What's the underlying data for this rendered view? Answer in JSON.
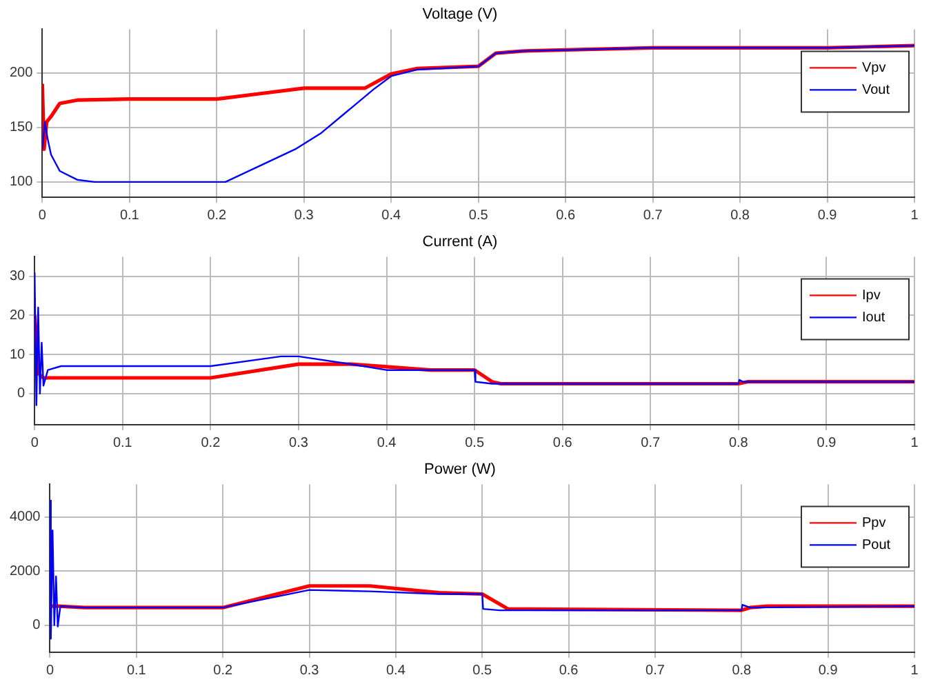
{
  "chart_data": [
    {
      "type": "line",
      "title": "Voltage (V)",
      "xlim": [
        0,
        1
      ],
      "xticks": [
        0,
        0.1,
        0.2,
        0.3,
        0.4,
        0.5,
        0.6,
        0.7,
        0.8,
        0.9,
        1
      ],
      "ylim": [
        86,
        240
      ],
      "yticks": [
        100,
        150,
        200
      ],
      "grid": true,
      "legend": "top right",
      "series": [
        {
          "name": "Vpv",
          "color": "#ff0000",
          "x": [
            0,
            0.002,
            0.005,
            0.01,
            0.02,
            0.04,
            0.1,
            0.2,
            0.21,
            0.25,
            0.3,
            0.37,
            0.4,
            0.43,
            0.5,
            0.52,
            0.55,
            0.6,
            0.7,
            0.8,
            0.9,
            1
          ],
          "values": [
            190,
            130,
            155,
            160,
            172,
            175,
            176,
            176,
            177,
            181,
            186,
            186,
            199,
            204,
            206,
            218,
            220,
            221,
            223,
            223,
            223,
            225
          ]
        },
        {
          "name": "Vout",
          "color": "#0000ff",
          "x": [
            0,
            0.003,
            0.006,
            0.01,
            0.02,
            0.04,
            0.06,
            0.2,
            0.21,
            0.25,
            0.29,
            0.32,
            0.35,
            0.38,
            0.4,
            0.43,
            0.5,
            0.52,
            0.55,
            0.6,
            0.7,
            0.8,
            0.9,
            1
          ],
          "values": [
            130,
            155,
            140,
            125,
            110,
            102,
            100,
            100,
            100,
            115,
            130,
            145,
            165,
            185,
            197,
            203,
            206,
            218,
            220,
            221,
            223,
            223,
            223,
            225
          ]
        }
      ]
    },
    {
      "type": "line",
      "title": "Current (A)",
      "xlim": [
        0,
        1
      ],
      "xticks": [
        0,
        0.1,
        0.2,
        0.3,
        0.4,
        0.5,
        0.6,
        0.7,
        0.8,
        0.9,
        1
      ],
      "ylim": [
        -8,
        35
      ],
      "yticks": [
        0,
        10,
        20,
        30
      ],
      "grid": true,
      "legend": "top right",
      "series": [
        {
          "name": "Ipv",
          "color": "#ff0000",
          "x": [
            0,
            0.005,
            0.01,
            0.2,
            0.3,
            0.36,
            0.45,
            0.5,
            0.52,
            0.53,
            0.8,
            0.81,
            1
          ],
          "values": [
            20,
            5,
            4,
            4,
            7.5,
            7.5,
            6,
            6,
            3,
            2.5,
            2.5,
            3,
            3
          ]
        },
        {
          "name": "Iout",
          "color": "#0000ff",
          "x": [
            0,
            0.002,
            0.004,
            0.006,
            0.008,
            0.01,
            0.015,
            0.03,
            0.2,
            0.28,
            0.3,
            0.36,
            0.4,
            0.5,
            0.501,
            0.52,
            0.8,
            0.801,
            0.805,
            1
          ],
          "values": [
            31,
            -3,
            22,
            0,
            13,
            2,
            6,
            7,
            7,
            9.5,
            9.5,
            7.5,
            6,
            6,
            3,
            2.5,
            2.5,
            3.5,
            3,
            3
          ]
        }
      ]
    },
    {
      "type": "line",
      "title": "Power (W)",
      "xlim": [
        0,
        1
      ],
      "xticks": [
        0,
        0.1,
        0.2,
        0.3,
        0.4,
        0.5,
        0.6,
        0.7,
        0.8,
        0.9,
        1
      ],
      "ylim": [
        -1000,
        5200
      ],
      "yticks": [
        0,
        2000,
        4000
      ],
      "grid": true,
      "legend": "top right",
      "series": [
        {
          "name": "Ppv",
          "color": "#ff0000",
          "x": [
            0,
            0.01,
            0.04,
            0.2,
            0.3,
            0.37,
            0.45,
            0.5,
            0.53,
            0.8,
            0.81,
            0.83,
            1
          ],
          "values": [
            700,
            700,
            650,
            650,
            1450,
            1450,
            1200,
            1150,
            600,
            550,
            650,
            700,
            700
          ]
        },
        {
          "name": "Pout",
          "color": "#0000ff",
          "x": [
            0,
            0.001,
            0.003,
            0.005,
            0.007,
            0.009,
            0.012,
            0.04,
            0.2,
            0.3,
            0.37,
            0.45,
            0.5,
            0.501,
            0.52,
            0.8,
            0.801,
            0.81,
            1
          ],
          "values": [
            4600,
            -500,
            3500,
            0,
            1800,
            -50,
            700,
            650,
            650,
            1300,
            1250,
            1150,
            1150,
            600,
            550,
            550,
            750,
            650,
            700
          ]
        }
      ]
    }
  ]
}
